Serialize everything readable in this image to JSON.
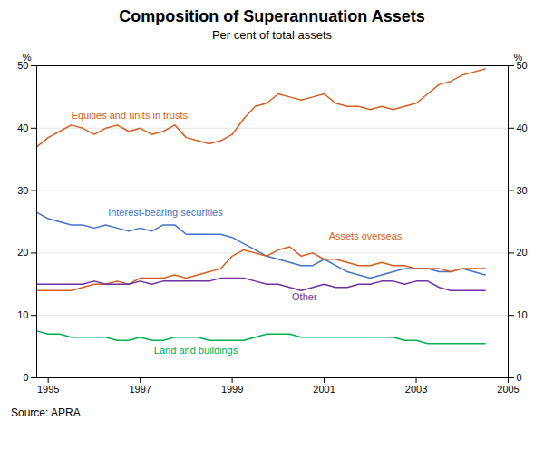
{
  "chart_data": {
    "type": "line",
    "title": "Composition of Superannuation Assets",
    "subtitle": "Per cent of total assets",
    "source": "Source: APRA",
    "ylabel": "%",
    "y2label": "%",
    "xlim": [
      1994.75,
      2005.0
    ],
    "xticks": [
      1995,
      1997,
      1999,
      2001,
      2003,
      2005
    ],
    "ylim": [
      0,
      50
    ],
    "yticks": [
      0,
      10,
      20,
      30,
      40,
      50
    ],
    "grid": "y",
    "x": [
      1994.75,
      1995.0,
      1995.25,
      1995.5,
      1995.75,
      1996.0,
      1996.25,
      1996.5,
      1996.75,
      1997.0,
      1997.25,
      1997.5,
      1997.75,
      1998.0,
      1998.25,
      1998.5,
      1998.75,
      1999.0,
      1999.25,
      1999.5,
      1999.75,
      2000.0,
      2000.25,
      2000.5,
      2000.75,
      2001.0,
      2001.25,
      2001.5,
      2001.75,
      2002.0,
      2002.25,
      2002.5,
      2002.75,
      2003.0,
      2003.25,
      2003.5,
      2003.75,
      2004.0,
      2004.25,
      2004.5
    ],
    "series": [
      {
        "name": "Equities and units in trusts",
        "color": "#d45f20",
        "values": [
          37.0,
          38.5,
          39.5,
          40.5,
          40.0,
          39.0,
          40.0,
          40.5,
          39.5,
          40.0,
          39.0,
          39.5,
          40.5,
          38.5,
          38.0,
          37.5,
          38.0,
          39.0,
          41.5,
          43.5,
          44.0,
          45.5,
          45.0,
          44.5,
          45.0,
          45.5,
          44.0,
          43.5,
          43.5,
          43.0,
          43.5,
          43.0,
          43.5,
          44.0,
          45.5,
          47.0,
          47.5,
          48.5,
          49.0,
          49.5
        ]
      },
      {
        "name": "Interest-bearing securities",
        "color": "#4472c4",
        "values": [
          26.5,
          25.5,
          25.0,
          24.5,
          24.5,
          24.0,
          24.5,
          24.0,
          23.5,
          24.0,
          23.5,
          24.5,
          24.5,
          23.0,
          23.0,
          23.0,
          23.0,
          22.5,
          21.5,
          20.5,
          19.5,
          19.0,
          18.5,
          18.0,
          18.0,
          19.0,
          18.0,
          17.0,
          16.5,
          16.0,
          16.5,
          17.0,
          17.5,
          17.5,
          17.5,
          17.0,
          17.0,
          17.5,
          17.0,
          16.5
        ]
      },
      {
        "name": "Assets overseas",
        "color": "#d45f20",
        "values": [
          14.0,
          14.0,
          14.0,
          14.0,
          14.5,
          15.0,
          15.0,
          15.5,
          15.0,
          16.0,
          16.0,
          16.0,
          16.5,
          16.0,
          16.5,
          17.0,
          17.5,
          19.5,
          20.5,
          20.0,
          19.5,
          20.5,
          21.0,
          19.5,
          20.0,
          19.0,
          19.0,
          18.5,
          18.0,
          18.0,
          18.5,
          18.0,
          18.0,
          17.5,
          17.5,
          17.5,
          17.0,
          17.5,
          17.5,
          17.5
        ]
      },
      {
        "name": "Other",
        "color": "#7030a0",
        "values": [
          15.0,
          15.0,
          15.0,
          15.0,
          15.0,
          15.5,
          15.0,
          15.0,
          15.0,
          15.5,
          15.0,
          15.5,
          15.5,
          15.5,
          15.5,
          15.5,
          16.0,
          16.0,
          16.0,
          15.5,
          15.0,
          15.0,
          14.5,
          14.0,
          14.5,
          15.0,
          14.5,
          14.5,
          15.0,
          15.0,
          15.5,
          15.5,
          15.0,
          15.5,
          15.5,
          14.5,
          14.0,
          14.0,
          14.0,
          14.0
        ]
      },
      {
        "name": "Land and buildings",
        "color": "#00b050",
        "values": [
          7.5,
          7.0,
          7.0,
          6.5,
          6.5,
          6.5,
          6.5,
          6.0,
          6.0,
          6.5,
          6.0,
          6.0,
          6.5,
          6.5,
          6.5,
          6.0,
          6.0,
          6.0,
          6.0,
          6.5,
          7.0,
          7.0,
          7.0,
          6.5,
          6.5,
          6.5,
          6.5,
          6.5,
          6.5,
          6.5,
          6.5,
          6.5,
          6.0,
          6.0,
          5.5,
          5.5,
          5.5,
          5.5,
          5.5,
          5.5
        ]
      }
    ],
    "annotations": [
      {
        "x": 1995.5,
        "y": 41.5,
        "text": "Equities and units in trusts",
        "color": "#d45f20"
      },
      {
        "x": 1996.3,
        "y": 26.0,
        "text": "Interest-bearing securities",
        "color": "#4472c4"
      },
      {
        "x": 2001.1,
        "y": 22.2,
        "text": "Assets overseas",
        "color": "#d45f20"
      },
      {
        "x": 2000.3,
        "y": 12.5,
        "text": "Other",
        "color": "#7030a0"
      },
      {
        "x": 1997.3,
        "y": 3.8,
        "text": "Land and buildings",
        "color": "#00b050"
      }
    ]
  }
}
